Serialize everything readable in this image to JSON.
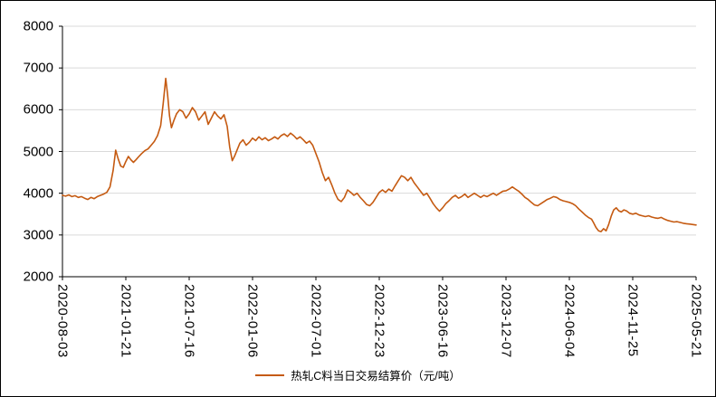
{
  "chart_data": {
    "type": "line",
    "title": "",
    "legend": "热轧C料当日交易结算价（元/吨）",
    "line_color": "#C55A11",
    "grid_color": "#D9D9D9",
    "axis_color": "#000000",
    "ylim": [
      2000,
      8000
    ],
    "y_ticks": [
      2000,
      3000,
      4000,
      5000,
      6000,
      7000,
      8000
    ],
    "x_tick_labels": [
      "2020-08-03",
      "2021-01-21",
      "2021-07-16",
      "2022-01-06",
      "2022-07-01",
      "2022-12-23",
      "2023-06-16",
      "2023-12-07",
      "2024-06-04",
      "2024-11-25",
      "2025-05-21"
    ],
    "x_axis_span": [
      "2020-08-03",
      "2025-05-21"
    ],
    "grid": "horizontal",
    "legend_position": "bottom-center",
    "series": [
      {
        "name": "热轧C料当日交易结算价（元/吨）",
        "x_unit": "fraction of x-axis from 2020-08-03 to 2025-05-21",
        "y_unit": "元/吨",
        "points": [
          [
            0.0,
            3950
          ],
          [
            0.005,
            3930
          ],
          [
            0.01,
            3960
          ],
          [
            0.015,
            3920
          ],
          [
            0.02,
            3940
          ],
          [
            0.025,
            3900
          ],
          [
            0.03,
            3920
          ],
          [
            0.035,
            3880
          ],
          [
            0.04,
            3850
          ],
          [
            0.045,
            3900
          ],
          [
            0.05,
            3870
          ],
          [
            0.055,
            3920
          ],
          [
            0.06,
            3950
          ],
          [
            0.065,
            3980
          ],
          [
            0.07,
            4020
          ],
          [
            0.075,
            4150
          ],
          [
            0.08,
            4550
          ],
          [
            0.084,
            5030
          ],
          [
            0.088,
            4820
          ],
          [
            0.092,
            4650
          ],
          [
            0.096,
            4620
          ],
          [
            0.1,
            4760
          ],
          [
            0.104,
            4880
          ],
          [
            0.108,
            4800
          ],
          [
            0.112,
            4740
          ],
          [
            0.116,
            4800
          ],
          [
            0.12,
            4870
          ],
          [
            0.125,
            4950
          ],
          [
            0.13,
            5020
          ],
          [
            0.135,
            5060
          ],
          [
            0.14,
            5150
          ],
          [
            0.145,
            5240
          ],
          [
            0.15,
            5380
          ],
          [
            0.155,
            5620
          ],
          [
            0.159,
            6150
          ],
          [
            0.163,
            6750
          ],
          [
            0.166,
            6350
          ],
          [
            0.169,
            5850
          ],
          [
            0.172,
            5570
          ],
          [
            0.176,
            5750
          ],
          [
            0.18,
            5900
          ],
          [
            0.185,
            6000
          ],
          [
            0.19,
            5950
          ],
          [
            0.195,
            5800
          ],
          [
            0.2,
            5900
          ],
          [
            0.205,
            6050
          ],
          [
            0.21,
            5950
          ],
          [
            0.215,
            5750
          ],
          [
            0.22,
            5850
          ],
          [
            0.225,
            5950
          ],
          [
            0.23,
            5650
          ],
          [
            0.235,
            5800
          ],
          [
            0.24,
            5950
          ],
          [
            0.245,
            5850
          ],
          [
            0.25,
            5780
          ],
          [
            0.255,
            5880
          ],
          [
            0.26,
            5600
          ],
          [
            0.264,
            5100
          ],
          [
            0.268,
            4780
          ],
          [
            0.272,
            4900
          ],
          [
            0.276,
            5050
          ],
          [
            0.28,
            5200
          ],
          [
            0.285,
            5280
          ],
          [
            0.29,
            5150
          ],
          [
            0.295,
            5220
          ],
          [
            0.3,
            5320
          ],
          [
            0.305,
            5260
          ],
          [
            0.31,
            5350
          ],
          [
            0.315,
            5280
          ],
          [
            0.32,
            5330
          ],
          [
            0.325,
            5260
          ],
          [
            0.33,
            5300
          ],
          [
            0.335,
            5350
          ],
          [
            0.34,
            5300
          ],
          [
            0.345,
            5380
          ],
          [
            0.35,
            5420
          ],
          [
            0.355,
            5360
          ],
          [
            0.36,
            5440
          ],
          [
            0.365,
            5380
          ],
          [
            0.37,
            5300
          ],
          [
            0.375,
            5350
          ],
          [
            0.38,
            5280
          ],
          [
            0.385,
            5200
          ],
          [
            0.39,
            5250
          ],
          [
            0.395,
            5150
          ],
          [
            0.4,
            4950
          ],
          [
            0.405,
            4750
          ],
          [
            0.41,
            4500
          ],
          [
            0.415,
            4300
          ],
          [
            0.42,
            4380
          ],
          [
            0.425,
            4200
          ],
          [
            0.43,
            4000
          ],
          [
            0.435,
            3850
          ],
          [
            0.44,
            3800
          ],
          [
            0.445,
            3900
          ],
          [
            0.45,
            4080
          ],
          [
            0.455,
            4020
          ],
          [
            0.46,
            3950
          ],
          [
            0.465,
            4000
          ],
          [
            0.47,
            3900
          ],
          [
            0.475,
            3820
          ],
          [
            0.48,
            3730
          ],
          [
            0.485,
            3700
          ],
          [
            0.49,
            3780
          ],
          [
            0.495,
            3900
          ],
          [
            0.5,
            4020
          ],
          [
            0.505,
            4080
          ],
          [
            0.51,
            4020
          ],
          [
            0.515,
            4100
          ],
          [
            0.52,
            4050
          ],
          [
            0.525,
            4180
          ],
          [
            0.53,
            4300
          ],
          [
            0.535,
            4420
          ],
          [
            0.54,
            4380
          ],
          [
            0.545,
            4300
          ],
          [
            0.55,
            4380
          ],
          [
            0.555,
            4250
          ],
          [
            0.56,
            4150
          ],
          [
            0.565,
            4050
          ],
          [
            0.57,
            3950
          ],
          [
            0.575,
            4000
          ],
          [
            0.58,
            3880
          ],
          [
            0.585,
            3750
          ],
          [
            0.59,
            3650
          ],
          [
            0.595,
            3570
          ],
          [
            0.6,
            3650
          ],
          [
            0.605,
            3750
          ],
          [
            0.61,
            3820
          ],
          [
            0.615,
            3900
          ],
          [
            0.62,
            3950
          ],
          [
            0.625,
            3880
          ],
          [
            0.63,
            3920
          ],
          [
            0.635,
            3980
          ],
          [
            0.64,
            3900
          ],
          [
            0.645,
            3950
          ],
          [
            0.65,
            4000
          ],
          [
            0.655,
            3950
          ],
          [
            0.66,
            3900
          ],
          [
            0.665,
            3950
          ],
          [
            0.67,
            3920
          ],
          [
            0.675,
            3960
          ],
          [
            0.68,
            4000
          ],
          [
            0.685,
            3950
          ],
          [
            0.69,
            4000
          ],
          [
            0.695,
            4050
          ],
          [
            0.7,
            4060
          ],
          [
            0.705,
            4100
          ],
          [
            0.71,
            4150
          ],
          [
            0.715,
            4100
          ],
          [
            0.72,
            4050
          ],
          [
            0.725,
            3980
          ],
          [
            0.73,
            3900
          ],
          [
            0.735,
            3850
          ],
          [
            0.74,
            3780
          ],
          [
            0.745,
            3720
          ],
          [
            0.75,
            3700
          ],
          [
            0.755,
            3750
          ],
          [
            0.76,
            3800
          ],
          [
            0.765,
            3850
          ],
          [
            0.77,
            3880
          ],
          [
            0.775,
            3920
          ],
          [
            0.78,
            3900
          ],
          [
            0.785,
            3850
          ],
          [
            0.79,
            3820
          ],
          [
            0.795,
            3800
          ],
          [
            0.8,
            3780
          ],
          [
            0.805,
            3750
          ],
          [
            0.81,
            3700
          ],
          [
            0.815,
            3620
          ],
          [
            0.82,
            3550
          ],
          [
            0.825,
            3480
          ],
          [
            0.83,
            3420
          ],
          [
            0.835,
            3380
          ],
          [
            0.838,
            3300
          ],
          [
            0.842,
            3180
          ],
          [
            0.846,
            3100
          ],
          [
            0.85,
            3080
          ],
          [
            0.854,
            3150
          ],
          [
            0.858,
            3100
          ],
          [
            0.862,
            3250
          ],
          [
            0.866,
            3450
          ],
          [
            0.87,
            3600
          ],
          [
            0.874,
            3650
          ],
          [
            0.878,
            3580
          ],
          [
            0.882,
            3550
          ],
          [
            0.886,
            3600
          ],
          [
            0.89,
            3580
          ],
          [
            0.895,
            3520
          ],
          [
            0.9,
            3500
          ],
          [
            0.905,
            3520
          ],
          [
            0.91,
            3480
          ],
          [
            0.915,
            3460
          ],
          [
            0.92,
            3440
          ],
          [
            0.925,
            3460
          ],
          [
            0.93,
            3430
          ],
          [
            0.935,
            3410
          ],
          [
            0.94,
            3400
          ],
          [
            0.945,
            3420
          ],
          [
            0.95,
            3380
          ],
          [
            0.955,
            3350
          ],
          [
            0.96,
            3330
          ],
          [
            0.965,
            3310
          ],
          [
            0.97,
            3320
          ],
          [
            0.975,
            3300
          ],
          [
            0.98,
            3280
          ],
          [
            0.985,
            3270
          ],
          [
            0.99,
            3260
          ],
          [
            0.995,
            3250
          ],
          [
            1.0,
            3240
          ]
        ]
      }
    ]
  }
}
